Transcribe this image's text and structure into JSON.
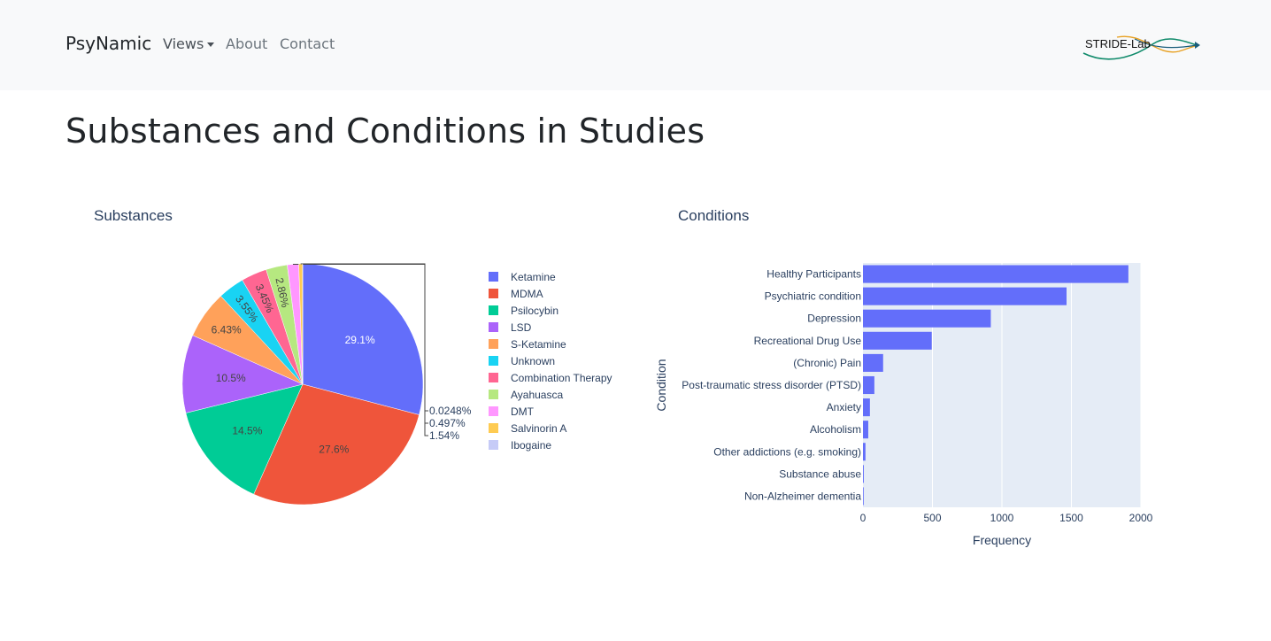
{
  "navbar": {
    "brand": "PsyNamic",
    "links": [
      {
        "label": "Views",
        "has_dropdown": true
      },
      {
        "label": "About"
      },
      {
        "label": "Contact"
      }
    ],
    "logo_text": "STRIDE-Lab"
  },
  "page_title": "Substances and Conditions in Studies",
  "colors": {
    "navbar_bg": "#f8f9fa",
    "plot_bg": "#e5ecf6",
    "bar_color": "#636efa",
    "text": "#2a3f5f"
  },
  "chart_data": [
    {
      "type": "pie",
      "title": "Substances",
      "legend_placement": "right",
      "slices": [
        {
          "label": "Ketamine",
          "percent": 29.1,
          "text": "29.1%",
          "color": "#636efa"
        },
        {
          "label": "MDMA",
          "percent": 27.6,
          "text": "27.6%",
          "color": "#ef553b"
        },
        {
          "label": "Psilocybin",
          "percent": 14.5,
          "text": "14.5%",
          "color": "#00cc96"
        },
        {
          "label": "LSD",
          "percent": 10.5,
          "text": "10.5%",
          "color": "#ab63fa"
        },
        {
          "label": "S-Ketamine",
          "percent": 6.43,
          "text": "6.43%",
          "color": "#ffa15a"
        },
        {
          "label": "Unknown",
          "percent": 3.55,
          "text": "3.55%",
          "color": "#19d3f3"
        },
        {
          "label": "Combination Therapy",
          "percent": 3.45,
          "text": "3.45%",
          "color": "#ff6692"
        },
        {
          "label": "Ayahuasca",
          "percent": 2.86,
          "text": "2.86%",
          "color": "#b6e880"
        },
        {
          "label": "DMT",
          "percent": 1.54,
          "text": "1.54%",
          "color": "#ff97ff"
        },
        {
          "label": "Salvinorin A",
          "percent": 0.497,
          "text": "0.497%",
          "color": "#fecb52"
        },
        {
          "label": "Ibogaine",
          "percent": 0.0248,
          "text": "0.0248%",
          "color": "#c6cbf7"
        }
      ]
    },
    {
      "type": "bar",
      "orientation": "horizontal",
      "title": "Conditions",
      "xlabel": "Frequency",
      "ylabel": "Condition",
      "xlim": [
        0,
        2000
      ],
      "xticks": [
        "0",
        "500",
        "1000",
        "1500",
        "2000"
      ],
      "grid": true,
      "categories": [
        "Healthy Participants",
        "Psychiatric condition",
        "Depression",
        "Recreational Drug Use",
        "(Chronic) Pain",
        "Post-traumatic stress disorder (PTSD)",
        "Anxiety",
        "Alcoholism",
        "Other addictions (e.g. smoking)",
        "Substance abuse",
        "Non-Alzheimer dementia"
      ],
      "values": [
        1910,
        1465,
        920,
        495,
        145,
        82,
        50,
        38,
        18,
        6,
        1
      ]
    }
  ]
}
